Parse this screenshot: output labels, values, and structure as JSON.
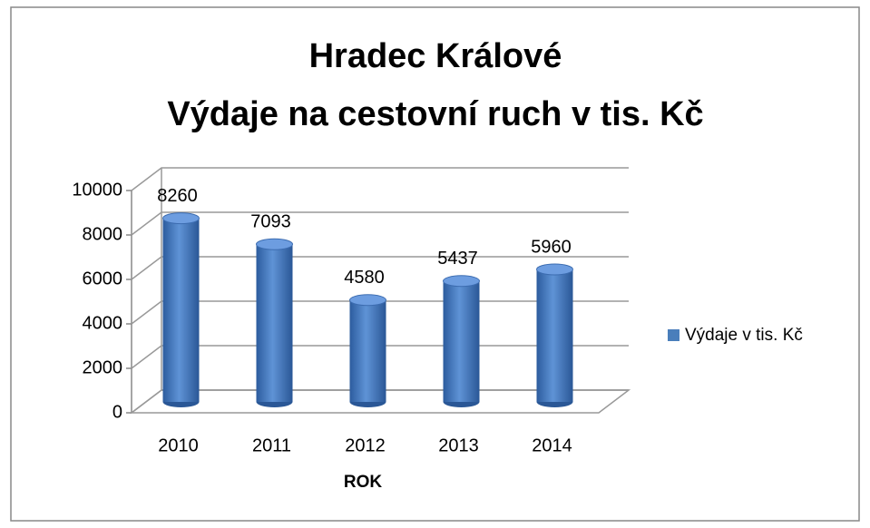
{
  "chart_data": {
    "type": "bar",
    "title": "Hradec Králové",
    "subtitle": "Výdaje na cestovní ruch v tis. Kč",
    "x_label": "ROK",
    "categories": [
      "2010",
      "2011",
      "2012",
      "2013",
      "2014"
    ],
    "series": [
      {
        "name": "Výdaje v tis. Kč",
        "color": "#4a7ebb",
        "values": [
          8260,
          7093,
          4580,
          5437,
          5960
        ]
      }
    ],
    "ylim": [
      0,
      10000
    ],
    "yticks": [
      0,
      2000,
      4000,
      6000,
      8000,
      10000
    ],
    "grid": true,
    "legend": "right"
  }
}
